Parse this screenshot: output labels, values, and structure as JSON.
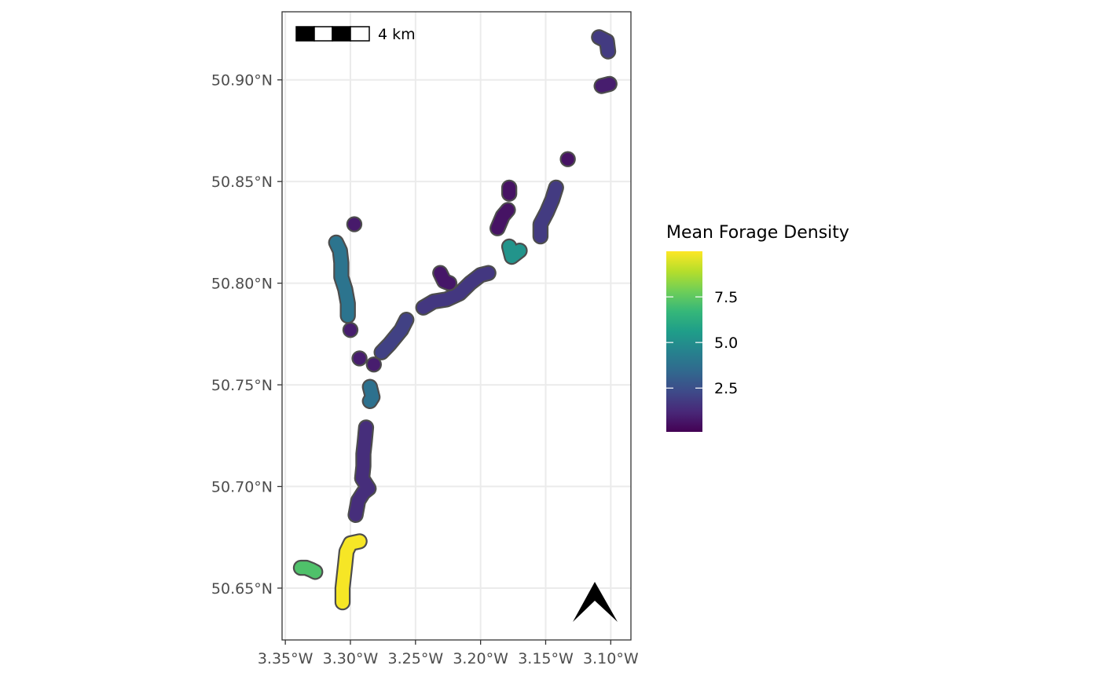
{
  "map": {
    "lon_range": [
      -3.3525,
      -3.0845
    ],
    "lat_range": [
      50.6245,
      50.9335
    ],
    "x_ticks": [
      {
        "value": -3.35,
        "label": "3.35°W"
      },
      {
        "value": -3.3,
        "label": "3.30°W"
      },
      {
        "value": -3.25,
        "label": "3.25°W"
      },
      {
        "value": -3.2,
        "label": "3.20°W"
      },
      {
        "value": -3.15,
        "label": "3.15°W"
      },
      {
        "value": -3.1,
        "label": "3.10°W"
      }
    ],
    "y_ticks": [
      {
        "value": 50.65,
        "label": "50.65°N"
      },
      {
        "value": 50.7,
        "label": "50.70°N"
      },
      {
        "value": 50.75,
        "label": "50.75°N"
      },
      {
        "value": 50.8,
        "label": "50.80°N"
      },
      {
        "value": 50.85,
        "label": "50.85°N"
      },
      {
        "value": 50.9,
        "label": "50.90°N"
      }
    ],
    "grid": true,
    "patches": [
      {
        "density": 9.9,
        "points": [
          [
            -3.306,
            50.643
          ],
          [
            -3.306,
            50.65
          ],
          [
            -3.305,
            50.656
          ],
          [
            -3.304,
            50.662
          ],
          [
            -3.303,
            50.668
          ],
          [
            -3.3,
            50.672
          ],
          [
            -3.293,
            50.673
          ]
        ]
      },
      {
        "density": 7.2,
        "points": [
          [
            -3.338,
            50.66
          ],
          [
            -3.334,
            50.66
          ],
          [
            -3.33,
            50.659
          ],
          [
            -3.327,
            50.658
          ]
        ]
      },
      {
        "density": 1.4,
        "points": [
          [
            -3.296,
            50.686
          ],
          [
            -3.294,
            50.693
          ],
          [
            -3.29,
            50.697
          ],
          [
            -3.286,
            50.699
          ],
          [
            -3.291,
            50.704
          ],
          [
            -3.29,
            50.71
          ],
          [
            -3.29,
            50.716
          ],
          [
            -3.289,
            50.722
          ],
          [
            -3.288,
            50.729
          ]
        ]
      },
      {
        "density": 3.8,
        "points": [
          [
            -3.285,
            50.742
          ],
          [
            -3.283,
            50.744
          ],
          [
            -3.285,
            50.749
          ]
        ]
      },
      {
        "density": 0.9,
        "points": [
          [
            -3.293,
            50.763
          ]
        ]
      },
      {
        "density": 0.9,
        "points": [
          [
            -3.282,
            50.76
          ]
        ]
      },
      {
        "density": 0.9,
        "points": [
          [
            -3.3,
            50.777
          ]
        ]
      },
      {
        "density": 3.9,
        "points": [
          [
            -3.302,
            50.784
          ],
          [
            -3.302,
            50.79
          ],
          [
            -3.304,
            50.797
          ],
          [
            -3.307,
            50.803
          ],
          [
            -3.307,
            50.81
          ],
          [
            -3.308,
            50.816
          ],
          [
            -3.311,
            50.82
          ]
        ]
      },
      {
        "density": 0.8,
        "points": [
          [
            -3.297,
            50.829
          ]
        ]
      },
      {
        "density": 2.0,
        "points": [
          [
            -3.276,
            50.766
          ],
          [
            -3.27,
            50.77
          ],
          [
            -3.261,
            50.777
          ],
          [
            -3.257,
            50.782
          ]
        ]
      },
      {
        "density": 1.7,
        "points": [
          [
            -3.244,
            50.788
          ],
          [
            -3.236,
            50.791
          ],
          [
            -3.226,
            50.792
          ],
          [
            -3.216,
            50.795
          ],
          [
            -3.208,
            50.8
          ],
          [
            -3.2,
            50.804
          ],
          [
            -3.194,
            50.805
          ]
        ]
      },
      {
        "density": 0.7,
        "points": [
          [
            -3.231,
            50.805
          ],
          [
            -3.228,
            50.801
          ],
          [
            -3.224,
            50.8
          ]
        ]
      },
      {
        "density": 0.6,
        "points": [
          [
            -3.187,
            50.827
          ],
          [
            -3.183,
            50.833
          ],
          [
            -3.179,
            50.836
          ]
        ]
      },
      {
        "density": 0.6,
        "points": [
          [
            -3.178,
            50.844
          ],
          [
            -3.178,
            50.847
          ]
        ]
      },
      {
        "density": 5.2,
        "points": [
          [
            -3.178,
            50.818
          ],
          [
            -3.176,
            50.813
          ],
          [
            -3.17,
            50.816
          ]
        ]
      },
      {
        "density": 1.8,
        "points": [
          [
            -3.154,
            50.823
          ],
          [
            -3.154,
            50.829
          ],
          [
            -3.149,
            50.835
          ],
          [
            -3.145,
            50.841
          ],
          [
            -3.142,
            50.847
          ]
        ]
      },
      {
        "density": 0.6,
        "points": [
          [
            -3.133,
            50.861
          ]
        ]
      },
      {
        "density": 1.8,
        "points": [
          [
            -3.109,
            50.921
          ],
          [
            -3.103,
            50.919
          ],
          [
            -3.102,
            50.914
          ]
        ]
      },
      {
        "density": 0.9,
        "points": [
          [
            -3.107,
            50.897
          ],
          [
            -3.101,
            50.898
          ]
        ]
      }
    ]
  },
  "legend": {
    "title": "Mean Forage Density",
    "range": [
      0.1,
      10.0
    ],
    "ticks": [
      {
        "value": 2.5,
        "label": "2.5"
      },
      {
        "value": 5.0,
        "label": "5.0"
      },
      {
        "value": 7.5,
        "label": "7.5"
      }
    ],
    "palette": [
      "#440154",
      "#482878",
      "#3e4a89",
      "#31688e",
      "#26828e",
      "#1f9e89",
      "#35b779",
      "#6ece58",
      "#b5de2b",
      "#fde725"
    ]
  },
  "scale_bar": {
    "label": "4 km"
  },
  "north_arrow": {
    "icon": "north-arrow-icon"
  },
  "colors": {
    "panel_border": "#333333",
    "grid": "#ebebeb",
    "patch_outline": "#4d4d4d"
  }
}
